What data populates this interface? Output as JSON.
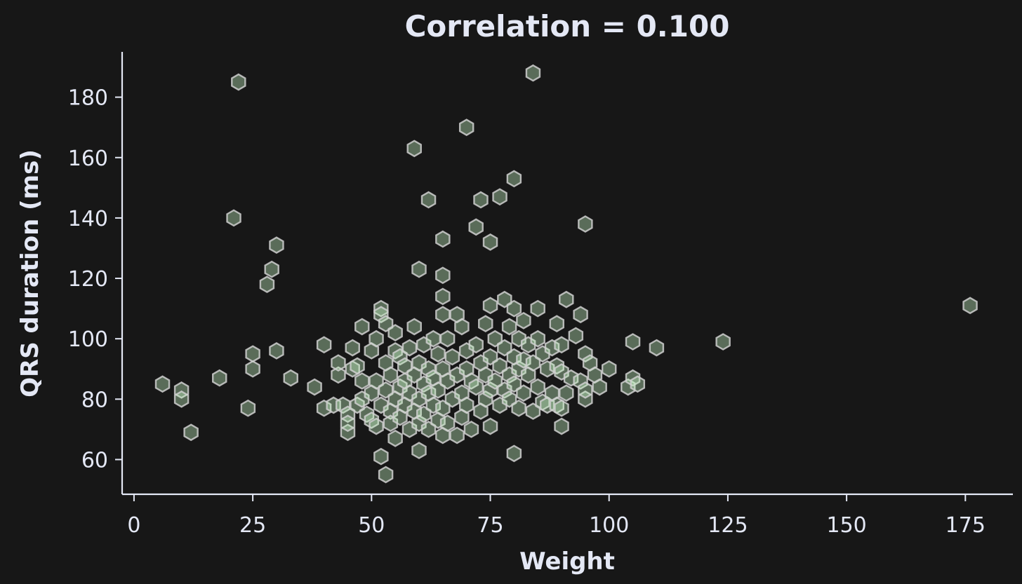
{
  "chart_data": {
    "type": "scatter",
    "title": "Correlation = 0.100",
    "xlabel": "Weight",
    "ylabel": "QRS duration (ms)",
    "xlim": [
      -2.5,
      185
    ],
    "ylim": [
      48.5,
      195
    ],
    "xticks": [
      0,
      25,
      50,
      75,
      100,
      125,
      150,
      175
    ],
    "yticks": [
      60,
      80,
      100,
      120,
      140,
      160,
      180
    ],
    "grid": false,
    "marker": "hexagon",
    "colors": {
      "background": "#171717",
      "text": "#e4e8f5",
      "axis": "#e4e8f5",
      "marker_fill": "#c8f7c5",
      "marker_edge": "#cfcfcf"
    },
    "points": [
      [
        6,
        85
      ],
      [
        10,
        83
      ],
      [
        10,
        80
      ],
      [
        12,
        69
      ],
      [
        18,
        87
      ],
      [
        21,
        140
      ],
      [
        22,
        185
      ],
      [
        24,
        77
      ],
      [
        25,
        95
      ],
      [
        25,
        90
      ],
      [
        28,
        118
      ],
      [
        29,
        123
      ],
      [
        30,
        131
      ],
      [
        30,
        96
      ],
      [
        33,
        87
      ],
      [
        38,
        84
      ],
      [
        40,
        98
      ],
      [
        40,
        77
      ],
      [
        42,
        78
      ],
      [
        43,
        88
      ],
      [
        43,
        92
      ],
      [
        44,
        78
      ],
      [
        45,
        69
      ],
      [
        45,
        75
      ],
      [
        45,
        72
      ],
      [
        46,
        97
      ],
      [
        46,
        90
      ],
      [
        47,
        91
      ],
      [
        47,
        78
      ],
      [
        48,
        104
      ],
      [
        48,
        80
      ],
      [
        48,
        86
      ],
      [
        49,
        75
      ],
      [
        50,
        96
      ],
      [
        50,
        82
      ],
      [
        50,
        73
      ],
      [
        51,
        71
      ],
      [
        51,
        100
      ],
      [
        51,
        86
      ],
      [
        52,
        110
      ],
      [
        52,
        108
      ],
      [
        52,
        78
      ],
      [
        52,
        61
      ],
      [
        53,
        55
      ],
      [
        53,
        105
      ],
      [
        53,
        92
      ],
      [
        53,
        83
      ],
      [
        54,
        76
      ],
      [
        54,
        88
      ],
      [
        54,
        72
      ],
      [
        55,
        96
      ],
      [
        55,
        67
      ],
      [
        55,
        102
      ],
      [
        55,
        80
      ],
      [
        56,
        84
      ],
      [
        56,
        94
      ],
      [
        56,
        74
      ],
      [
        57,
        86
      ],
      [
        57,
        78
      ],
      [
        57,
        91
      ],
      [
        58,
        70
      ],
      [
        58,
        82
      ],
      [
        58,
        97
      ],
      [
        59,
        104
      ],
      [
        59,
        163
      ],
      [
        59,
        88
      ],
      [
        59,
        76
      ],
      [
        60,
        123
      ],
      [
        60,
        63
      ],
      [
        60,
        92
      ],
      [
        60,
        80
      ],
      [
        60,
        72
      ],
      [
        61,
        98
      ],
      [
        61,
        85
      ],
      [
        61,
        75
      ],
      [
        62,
        146
      ],
      [
        62,
        90
      ],
      [
        62,
        82
      ],
      [
        62,
        70
      ],
      [
        63,
        100
      ],
      [
        63,
        78
      ],
      [
        63,
        87
      ],
      [
        64,
        95
      ],
      [
        64,
        73
      ],
      [
        64,
        83
      ],
      [
        65,
        133
      ],
      [
        65,
        121
      ],
      [
        65,
        114
      ],
      [
        65,
        108
      ],
      [
        65,
        68
      ],
      [
        65,
        90
      ],
      [
        65,
        77
      ],
      [
        66,
        100
      ],
      [
        66,
        86
      ],
      [
        66,
        72
      ],
      [
        67,
        94
      ],
      [
        67,
        80
      ],
      [
        68,
        108
      ],
      [
        68,
        68
      ],
      [
        68,
        88
      ],
      [
        69,
        104
      ],
      [
        69,
        82
      ],
      [
        69,
        74
      ],
      [
        70,
        170
      ],
      [
        70,
        96
      ],
      [
        70,
        90
      ],
      [
        70,
        78
      ],
      [
        71,
        86
      ],
      [
        71,
        70
      ],
      [
        72,
        137
      ],
      [
        72,
        98
      ],
      [
        72,
        84
      ],
      [
        73,
        146
      ],
      [
        73,
        92
      ],
      [
        73,
        76
      ],
      [
        74,
        105
      ],
      [
        74,
        88
      ],
      [
        74,
        80
      ],
      [
        75,
        132
      ],
      [
        75,
        111
      ],
      [
        75,
        71
      ],
      [
        75,
        94
      ],
      [
        75,
        83
      ],
      [
        76,
        100
      ],
      [
        76,
        86
      ],
      [
        77,
        147
      ],
      [
        77,
        91
      ],
      [
        77,
        78
      ],
      [
        78,
        113
      ],
      [
        78,
        97
      ],
      [
        78,
        83
      ],
      [
        79,
        104
      ],
      [
        79,
        88
      ],
      [
        79,
        80
      ],
      [
        80,
        153
      ],
      [
        80,
        110
      ],
      [
        80,
        62
      ],
      [
        80,
        94
      ],
      [
        80,
        85
      ],
      [
        81,
        100
      ],
      [
        81,
        90
      ],
      [
        81,
        77
      ],
      [
        82,
        106
      ],
      [
        82,
        93
      ],
      [
        82,
        82
      ],
      [
        83,
        88
      ],
      [
        83,
        98
      ],
      [
        84,
        188
      ],
      [
        84,
        76
      ],
      [
        84,
        92
      ],
      [
        85,
        110
      ],
      [
        85,
        100
      ],
      [
        85,
        84
      ],
      [
        86,
        95
      ],
      [
        86,
        79
      ],
      [
        87,
        90
      ],
      [
        87,
        78
      ],
      [
        88,
        97
      ],
      [
        88,
        82
      ],
      [
        89,
        105
      ],
      [
        89,
        91
      ],
      [
        89,
        78
      ],
      [
        90,
        89
      ],
      [
        90,
        77
      ],
      [
        90,
        71
      ],
      [
        90,
        98
      ],
      [
        91,
        113
      ],
      [
        91,
        82
      ],
      [
        92,
        87
      ],
      [
        93,
        101
      ],
      [
        94,
        108
      ],
      [
        94,
        86
      ],
      [
        95,
        138
      ],
      [
        95,
        95
      ],
      [
        95,
        80
      ],
      [
        95,
        83
      ],
      [
        96,
        92
      ],
      [
        97,
        88
      ],
      [
        98,
        84
      ],
      [
        100,
        90
      ],
      [
        104,
        84
      ],
      [
        105,
        99
      ],
      [
        105,
        87
      ],
      [
        106,
        85
      ],
      [
        110,
        97
      ],
      [
        124,
        99
      ],
      [
        176,
        111
      ]
    ]
  }
}
